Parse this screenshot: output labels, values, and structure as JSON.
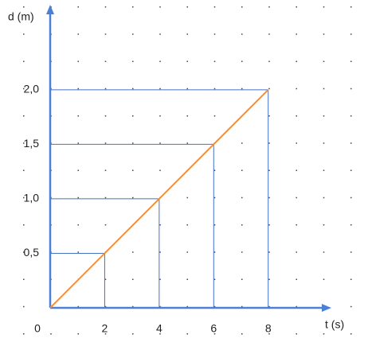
{
  "chart_data": {
    "type": "line",
    "x_label": "t (s)",
    "y_label": "d (m)",
    "x": [
      0,
      2,
      4,
      6,
      8
    ],
    "series": [
      {
        "color": "#f0903a",
        "values": [
          0,
          0.5,
          1,
          1.5,
          2
        ]
      }
    ],
    "xlim": [
      0,
      10.2
    ],
    "ylim": [
      0,
      2.75
    ],
    "xticks": [
      0,
      2,
      4,
      6,
      8
    ],
    "yticks": [
      {
        "value": 0.5,
        "label": "0,5"
      },
      {
        "value": 1,
        "label": "1,0"
      },
      {
        "value": 1.5,
        "label": "1,5"
      },
      {
        "value": 2,
        "label": "2,0"
      }
    ],
    "axis_color": "#4a80d8",
    "guide_color": "#4472c4"
  }
}
